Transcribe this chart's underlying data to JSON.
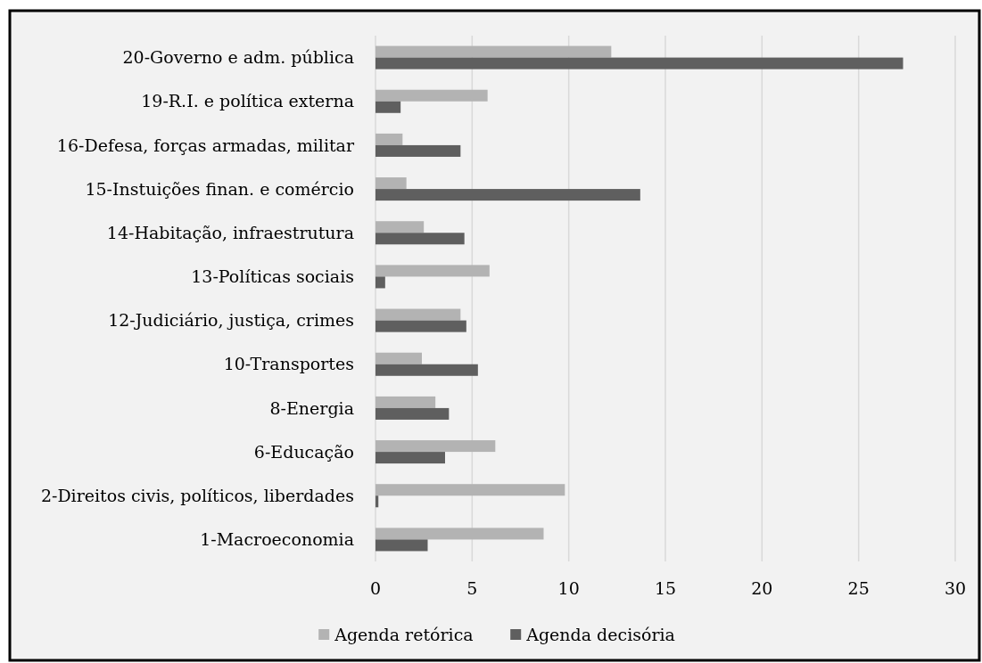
{
  "chart_data": {
    "type": "bar",
    "orientation": "horizontal",
    "categories": [
      "20-Governo e adm. pública",
      "19-R.I. e política externa",
      "16-Defesa, forças armadas, militar",
      "15-Instuições finan. e comércio",
      "14-Habitação, infraestrutura",
      "13-Políticas sociais",
      "12-Judiciário, justiça, crimes",
      "10-Transportes",
      "8-Energia",
      "6-Educação",
      "2-Direitos civis, políticos, liberdades",
      "1-Macroeconomia"
    ],
    "series": [
      {
        "name": "Agenda retórica",
        "color": "#b3b3b3",
        "values": [
          12.2,
          5.8,
          1.4,
          1.6,
          2.5,
          5.9,
          4.4,
          2.4,
          3.1,
          6.2,
          9.8,
          8.7
        ]
      },
      {
        "name": "Agenda decisória",
        "color": "#5f5f5f",
        "values": [
          27.3,
          1.3,
          4.4,
          13.7,
          4.6,
          0.5,
          4.7,
          5.3,
          3.8,
          3.6,
          0.15,
          2.7
        ]
      }
    ],
    "xlim": [
      0,
      30
    ],
    "xticks": [
      0,
      5,
      10,
      15,
      20,
      25,
      30
    ],
    "grid": "x",
    "legend": "bottom"
  }
}
